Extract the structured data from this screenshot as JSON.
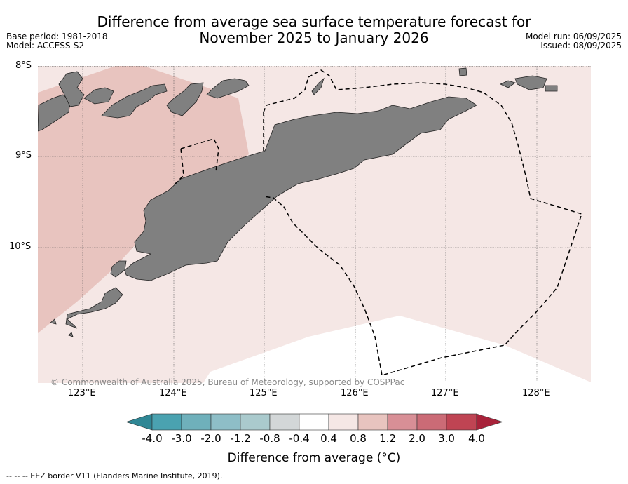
{
  "title_line1": "Difference from average sea surface temperature forecast for",
  "title_line2": "November 2025 to January 2026",
  "meta_left": [
    "Base period: 1981-2018",
    "Model: ACCESS-S2"
  ],
  "meta_right": [
    "Model run: 06/09/2025",
    "Issued: 08/09/2025"
  ],
  "lat_labels": [
    "8°S",
    "9°S",
    "10°S"
  ],
  "lon_labels": [
    "123°E",
    "124°E",
    "125°E",
    "126°E",
    "127°E",
    "128°E"
  ],
  "copyright": "© Commonwealth of Australia 2025, Bureau of Meteorology, supported by COSPPac",
  "colorbar": {
    "ticks": [
      "-4.0",
      "-3.0",
      "-2.0",
      "-1.2",
      "-0.8",
      "-0.4",
      "0.4",
      "0.8",
      "1.2",
      "2.0",
      "3.0",
      "4.0"
    ],
    "colors": [
      "#2f8795",
      "#4aa2b0",
      "#6fb0bb",
      "#8ebec7",
      "#aacacd",
      "#d3d7d8",
      "#ffffff",
      "#f5e7e5",
      "#e8c4bf",
      "#d88f96",
      "#cb6b76",
      "#bf4453",
      "#a8223a"
    ],
    "label": "Difference from average (°C)"
  },
  "footer": "-- -- -- EEZ border V11 (Flanders Marine Institute, 2019).",
  "colors": {
    "land": "#808080",
    "anomaly_0_4_to_0_8": "#f5e7e5",
    "anomaly_0_8_to_1_2": "#e8c4bf"
  }
}
